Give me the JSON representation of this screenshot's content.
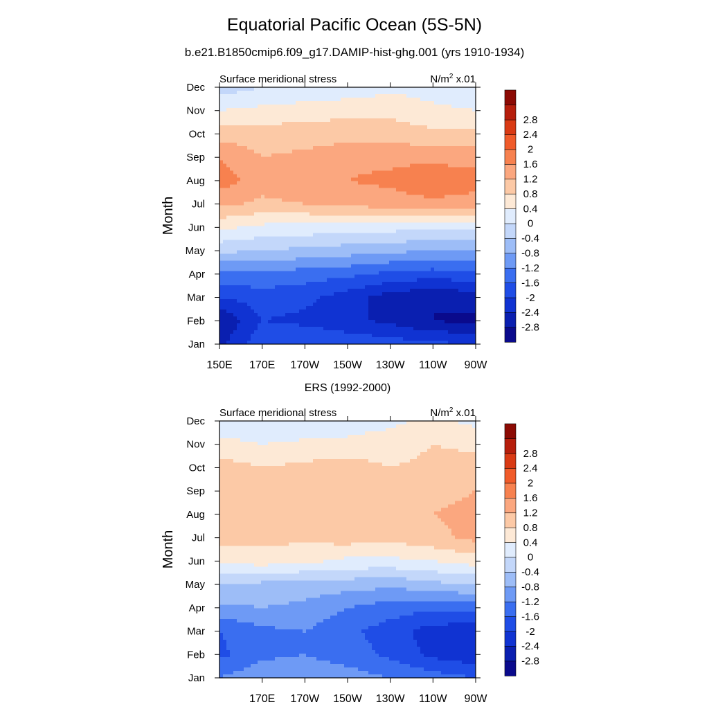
{
  "title": "Equatorial Pacific Ocean (5S-5N)",
  "subtitle": "b.e21.B1850cmip6.f09_g17.DAMIP-hist-ghg.001 (yrs 1910-1934)",
  "colors": {
    "levels": [
      "#0a0a8c",
      "#0a1fb0",
      "#1033d2",
      "#1f4de6",
      "#3a6ef0",
      "#6e9af5",
      "#9dbdf7",
      "#c3d7fa",
      "#e0ecfd",
      "#fde9d6",
      "#fcc9a6",
      "#fba77f",
      "#f7814f",
      "#f05b2a",
      "#d93a14",
      "#b61e0c",
      "#8c0a04"
    ],
    "thresholds": [
      -2.8,
      -2.4,
      -2.0,
      -1.6,
      -1.2,
      -0.8,
      -0.4,
      0,
      0.4,
      0.8,
      1.2,
      1.6,
      2.0,
      2.4,
      2.8
    ]
  },
  "chart_data": [
    {
      "type": "heatmap",
      "title": "",
      "left_string": "Surface meridional stress",
      "right_string": "N/m",
      "right_sup": "2",
      "right_tail": " x.01",
      "ylabel": "Month",
      "xlabel": "",
      "x_ticks": [
        "150E",
        "170E",
        "170W",
        "150W",
        "130W",
        "110W",
        "90W"
      ],
      "x_lon": [
        150,
        170,
        190,
        210,
        230,
        250,
        270
      ],
      "xlim": [
        150,
        270
      ],
      "y_ticks": [
        "Jan",
        "Feb",
        "Mar",
        "Apr",
        "May",
        "Jun",
        "Jul",
        "Aug",
        "Sep",
        "Oct",
        "Nov",
        "Dec"
      ],
      "colorbar_labels": [
        "2.8",
        "2.4",
        "2",
        "1.6",
        "1.2",
        "0.8",
        "0.4",
        "0",
        "-0.4",
        "-0.8",
        "-1.2",
        "-1.6",
        "-2",
        "-2.4",
        "-2.8"
      ],
      "lon": [
        150,
        170,
        190,
        210,
        230,
        250,
        270
      ],
      "values": [
        [
          -2.5,
          -1.7,
          -1.6,
          -1.7,
          -1.8,
          -1.9,
          -2.0
        ],
        [
          -2.8,
          -2.0,
          -2.1,
          -2.3,
          -2.5,
          -2.8,
          -2.9
        ],
        [
          -2.0,
          -1.8,
          -1.9,
          -2.2,
          -2.6,
          -2.8,
          -2.6
        ],
        [
          -1.3,
          -1.3,
          -1.4,
          -1.5,
          -1.7,
          -1.8,
          -1.7
        ],
        [
          -0.3,
          -0.4,
          -0.5,
          -0.6,
          -0.7,
          -0.8,
          -0.8
        ],
        [
          0.5,
          0.3,
          0.25,
          0.2,
          0.15,
          0.1,
          0.05
        ],
        [
          1.3,
          1.1,
          1.2,
          1.3,
          1.4,
          1.5,
          1.4
        ],
        [
          1.8,
          1.4,
          1.5,
          1.6,
          1.7,
          1.9,
          1.8
        ],
        [
          1.6,
          1.2,
          1.3,
          1.5,
          1.5,
          1.5,
          1.4
        ],
        [
          1.0,
          1.0,
          1.0,
          1.0,
          1.0,
          0.9,
          0.9
        ],
        [
          0.4,
          0.5,
          0.6,
          0.7,
          0.7,
          0.5,
          0.4
        ],
        [
          -0.2,
          0.0,
          0.05,
          0.1,
          0.3,
          0.2,
          0.1
        ]
      ]
    },
    {
      "type": "heatmap",
      "title": "ERS (1992-2000)",
      "left_string": "Surface meridional stress",
      "right_string": "N/m",
      "right_sup": "2",
      "right_tail": " x.01",
      "ylabel": "Month",
      "xlabel": "",
      "x_ticks": [
        "170E",
        "170W",
        "150W",
        "130W",
        "110W",
        "90W"
      ],
      "x_lon": [
        170,
        190,
        210,
        230,
        250,
        270
      ],
      "xlim": [
        150,
        270
      ],
      "y_ticks": [
        "Jan",
        "Feb",
        "Mar",
        "Apr",
        "May",
        "Jun",
        "Jul",
        "Aug",
        "Sep",
        "Oct",
        "Nov",
        "Dec"
      ],
      "colorbar_labels": [
        "2.8",
        "2.4",
        "2",
        "1.6",
        "1.2",
        "0.8",
        "0.4",
        "0",
        "-0.4",
        "-0.8",
        "-1.2",
        "-1.6",
        "-2",
        "-2.4",
        "-2.8"
      ],
      "lon": [
        150,
        170,
        190,
        210,
        230,
        250,
        270
      ],
      "values": [
        [
          -1.2,
          -0.9,
          -0.9,
          -1.0,
          -1.2,
          -1.4,
          -1.6
        ],
        [
          -1.7,
          -1.3,
          -1.2,
          -1.4,
          -1.7,
          -2.1,
          -2.3
        ],
        [
          -1.6,
          -1.3,
          -1.2,
          -1.5,
          -1.8,
          -2.2,
          -2.3
        ],
        [
          -0.9,
          -0.8,
          -0.9,
          -1.2,
          -1.4,
          -1.5,
          -1.4
        ],
        [
          -0.4,
          -0.5,
          -0.6,
          -0.6,
          -0.7,
          -0.5,
          -0.4
        ],
        [
          0.5,
          0.6,
          0.5,
          0.3,
          0.3,
          0.4,
          0.6
        ],
        [
          1.0,
          0.9,
          0.9,
          1.0,
          0.9,
          1.1,
          1.3
        ],
        [
          1.1,
          0.9,
          1.0,
          1.1,
          1.0,
          1.2,
          1.3
        ],
        [
          1.2,
          0.9,
          1.0,
          1.1,
          0.9,
          1.1,
          1.2
        ],
        [
          1.0,
          0.8,
          0.9,
          1.0,
          0.8,
          0.9,
          1.0
        ],
        [
          0.5,
          0.4,
          0.5,
          0.5,
          0.6,
          0.8,
          0.7
        ],
        [
          0.2,
          0.1,
          0.0,
          0.2,
          0.3,
          0.5,
          0.3
        ]
      ]
    }
  ]
}
